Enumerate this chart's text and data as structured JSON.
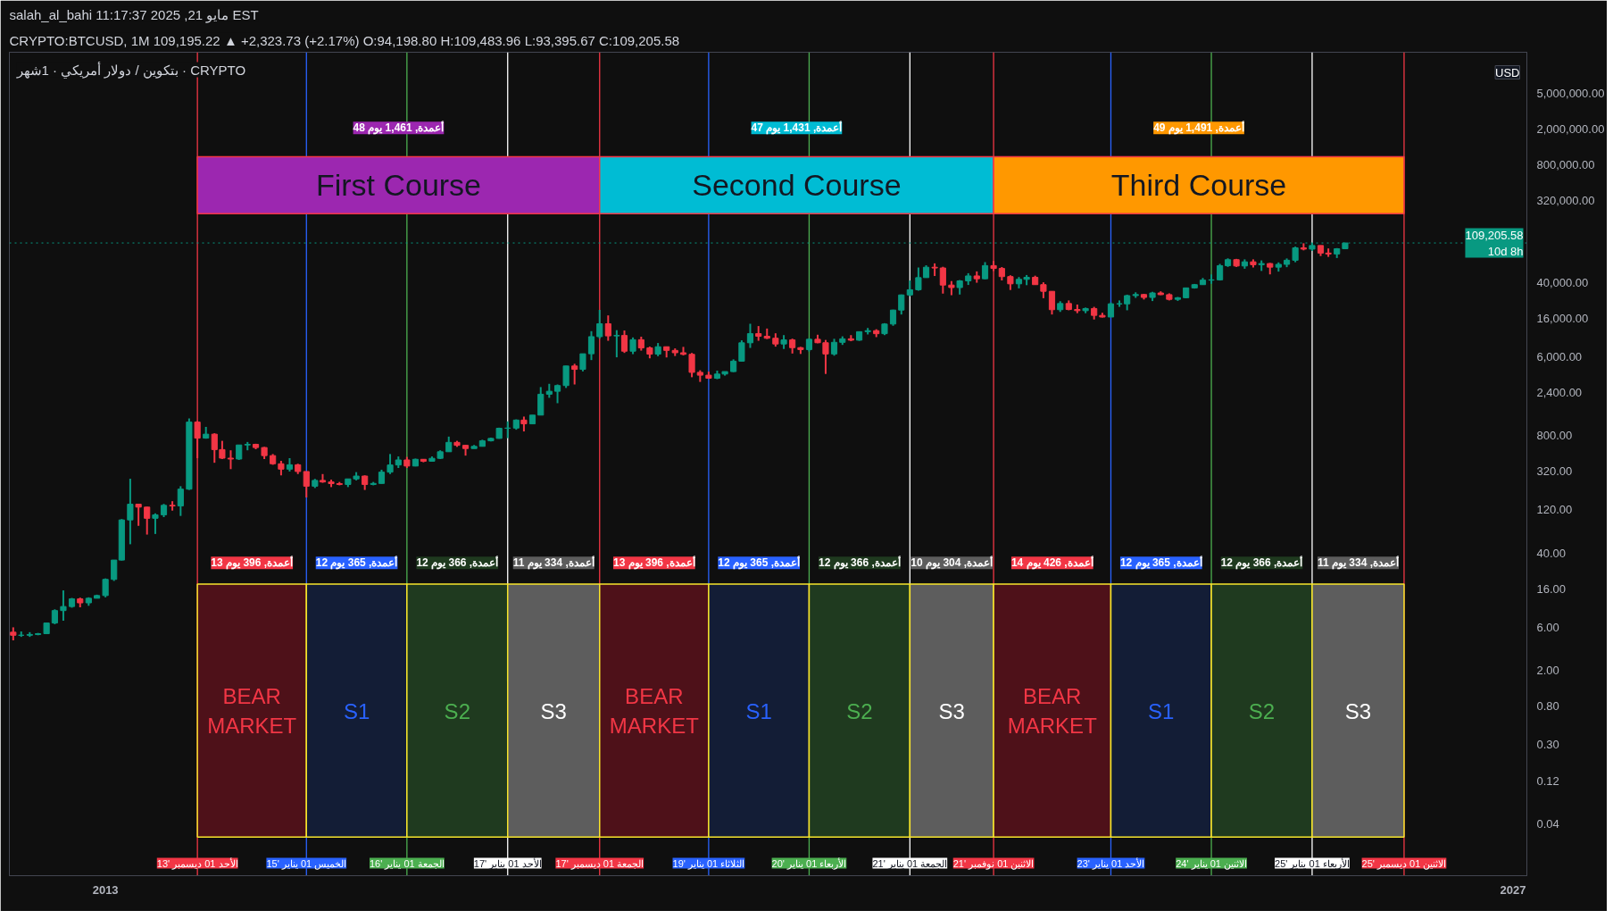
{
  "chart_data": {
    "type": "candlestick",
    "title": "salah_al_bahi مايو 21, 2025 11:17:37 EST",
    "subtitle": "CRYPTO:BTCUSD, 1M 109,195.22 ▲ +2,323.73 (+2.17%) O:94,198.80 H:109,483.96 L:93,395.67 C:109,205.58",
    "log": true,
    "xlim": [
      "2012-01-18",
      "2027-02-20"
    ],
    "xticks": [
      {
        "value": "2013-01-01",
        "label": "2013"
      },
      {
        "value": "2027-01-01",
        "label": "2027"
      }
    ],
    "ylim": [
      0.0106,
      14200000
    ],
    "yticks": [
      {
        "value": 0.04,
        "label": "0.04"
      },
      {
        "value": 0.12,
        "label": "0.12"
      },
      {
        "value": 0.3,
        "label": "0.30"
      },
      {
        "value": 0.8,
        "label": "0.80"
      },
      {
        "value": 2,
        "label": "2.00"
      },
      {
        "value": 6,
        "label": "6.00"
      },
      {
        "value": 16,
        "label": "16.00"
      },
      {
        "value": 40,
        "label": "40.00"
      },
      {
        "value": 120,
        "label": "120.00"
      },
      {
        "value": 320,
        "label": "320.00"
      },
      {
        "value": 800,
        "label": "800.00"
      },
      {
        "value": 2400,
        "label": "2,400.00"
      },
      {
        "value": 6000,
        "label": "6,000.00"
      },
      {
        "value": 16000,
        "label": "16,000.00"
      },
      {
        "value": 40000,
        "label": "40,000.00"
      },
      {
        "value": 320000,
        "label": "320,000.00"
      },
      {
        "value": 800000,
        "label": "800,000.00"
      },
      {
        "value": 2000000,
        "label": "2,000,000.00"
      },
      {
        "value": 5000000,
        "label": "5,000,000.00"
      }
    ],
    "x": [
      "2012-02",
      "2012-03",
      "2012-04",
      "2012-05",
      "2012-06",
      "2012-07",
      "2012-08",
      "2012-09",
      "2012-10",
      "2012-11",
      "2012-12",
      "2013-01",
      "2013-02",
      "2013-03",
      "2013-04",
      "2013-05",
      "2013-06",
      "2013-07",
      "2013-08",
      "2013-09",
      "2013-10",
      "2013-11",
      "2013-12",
      "2014-01",
      "2014-02",
      "2014-03",
      "2014-04",
      "2014-05",
      "2014-06",
      "2014-07",
      "2014-08",
      "2014-09",
      "2014-10",
      "2014-11",
      "2014-12",
      "2015-01",
      "2015-02",
      "2015-03",
      "2015-04",
      "2015-05",
      "2015-06",
      "2015-07",
      "2015-08",
      "2015-09",
      "2015-10",
      "2015-11",
      "2015-12",
      "2016-01",
      "2016-02",
      "2016-03",
      "2016-04",
      "2016-05",
      "2016-06",
      "2016-07",
      "2016-08",
      "2016-09",
      "2016-10",
      "2016-11",
      "2016-12",
      "2017-01",
      "2017-02",
      "2017-03",
      "2017-04",
      "2017-05",
      "2017-06",
      "2017-07",
      "2017-08",
      "2017-09",
      "2017-10",
      "2017-11",
      "2017-12",
      "2018-01",
      "2018-02",
      "2018-03",
      "2018-04",
      "2018-05",
      "2018-06",
      "2018-07",
      "2018-08",
      "2018-09",
      "2018-10",
      "2018-11",
      "2018-12",
      "2019-01",
      "2019-02",
      "2019-03",
      "2019-04",
      "2019-05",
      "2019-06",
      "2019-07",
      "2019-08",
      "2019-09",
      "2019-10",
      "2019-11",
      "2019-12",
      "2020-01",
      "2020-02",
      "2020-03",
      "2020-04",
      "2020-05",
      "2020-06",
      "2020-07",
      "2020-08",
      "2020-09",
      "2020-10",
      "2020-11",
      "2020-12",
      "2021-01",
      "2021-02",
      "2021-03",
      "2021-04",
      "2021-05",
      "2021-06",
      "2021-07",
      "2021-08",
      "2021-09",
      "2021-10",
      "2021-11",
      "2021-12",
      "2022-01",
      "2022-02",
      "2022-03",
      "2022-04",
      "2022-05",
      "2022-06",
      "2022-07",
      "2022-08",
      "2022-09",
      "2022-10",
      "2022-11",
      "2022-12",
      "2023-01",
      "2023-02",
      "2023-03",
      "2023-04",
      "2023-05",
      "2023-06",
      "2023-07",
      "2023-08",
      "2023-09",
      "2023-10",
      "2023-11",
      "2023-12",
      "2024-01",
      "2024-02",
      "2024-03",
      "2024-04",
      "2024-05",
      "2024-06",
      "2024-07",
      "2024-08",
      "2024-09",
      "2024-10",
      "2024-11",
      "2024-12",
      "2025-01",
      "2025-02",
      "2025-03",
      "2025-04",
      "2025-05"
    ],
    "ohlc": [
      [
        5.3,
        6.0,
        4.3,
        4.9
      ],
      [
        4.9,
        5.4,
        4.7,
        4.9
      ],
      [
        4.9,
        5.3,
        4.7,
        5.0
      ],
      [
        5.0,
        5.2,
        4.9,
        5.1
      ],
      [
        5.1,
        6.7,
        5.1,
        6.7
      ],
      [
        6.7,
        9.5,
        6.5,
        9.2
      ],
      [
        9.2,
        15.4,
        7.1,
        10.2
      ],
      [
        10.2,
        12.7,
        9.9,
        12.4
      ],
      [
        12.4,
        12.8,
        10.0,
        11.2
      ],
      [
        11.2,
        12.9,
        10.4,
        12.6
      ],
      [
        12.6,
        13.8,
        12.6,
        13.5
      ],
      [
        13.5,
        20.9,
        12.9,
        20.4
      ],
      [
        20.4,
        33.5,
        19.6,
        33.4
      ],
      [
        33.4,
        95,
        33,
        93
      ],
      [
        93,
        266,
        50,
        139
      ],
      [
        139,
        140,
        80,
        129
      ],
      [
        129,
        130,
        64,
        97
      ],
      [
        97,
        110,
        65,
        106
      ],
      [
        106,
        140,
        100,
        135
      ],
      [
        135,
        150,
        118,
        133
      ],
      [
        133,
        220,
        103,
        204
      ],
      [
        204,
        1240,
        200,
        1130
      ],
      [
        1130,
        1160,
        450,
        750
      ],
      [
        750,
        1000,
        740,
        830
      ],
      [
        830,
        850,
        400,
        560
      ],
      [
        560,
        700,
        440,
        450
      ],
      [
        450,
        550,
        340,
        440
      ],
      [
        440,
        630,
        430,
        630
      ],
      [
        630,
        680,
        550,
        640
      ],
      [
        640,
        650,
        565,
        590
      ],
      [
        590,
        600,
        440,
        480
      ],
      [
        480,
        500,
        380,
        390
      ],
      [
        390,
        420,
        290,
        340
      ],
      [
        340,
        450,
        320,
        380
      ],
      [
        380,
        390,
        300,
        320
      ],
      [
        320,
        320,
        165,
        220
      ],
      [
        220,
        265,
        210,
        255
      ],
      [
        255,
        300,
        240,
        245
      ],
      [
        245,
        260,
        215,
        235
      ],
      [
        235,
        245,
        225,
        230
      ],
      [
        230,
        265,
        215,
        265
      ],
      [
        265,
        315,
        255,
        285
      ],
      [
        285,
        290,
        200,
        230
      ],
      [
        230,
        245,
        225,
        236
      ],
      [
        236,
        335,
        235,
        315
      ],
      [
        315,
        500,
        300,
        378
      ],
      [
        378,
        470,
        350,
        430
      ],
      [
        430,
        465,
        350,
        368
      ],
      [
        368,
        445,
        365,
        437
      ],
      [
        437,
        440,
        405,
        416
      ],
      [
        416,
        470,
        412,
        448
      ],
      [
        448,
        550,
        440,
        530
      ],
      [
        530,
        780,
        530,
        673
      ],
      [
        673,
        700,
        600,
        624
      ],
      [
        624,
        630,
        480,
        575
      ],
      [
        575,
        630,
        575,
        608
      ],
      [
        608,
        720,
        605,
        700
      ],
      [
        700,
        760,
        690,
        745
      ],
      [
        745,
        980,
        740,
        965
      ],
      [
        965,
        1150,
        750,
        970
      ],
      [
        970,
        1210,
        930,
        1190
      ],
      [
        1190,
        1300,
        890,
        1080
      ],
      [
        1080,
        1350,
        1070,
        1350
      ],
      [
        1350,
        2760,
        1350,
        2300
      ],
      [
        2300,
        3000,
        2100,
        2480
      ],
      [
        2480,
        2950,
        1830,
        2870
      ],
      [
        2870,
        4750,
        2700,
        4730
      ],
      [
        4730,
        5000,
        2950,
        4340
      ],
      [
        4340,
        6470,
        4120,
        6460
      ],
      [
        6460,
        11500,
        5500,
        10000
      ],
      [
        10000,
        19800,
        9500,
        13900
      ],
      [
        13900,
        17200,
        9000,
        10200
      ],
      [
        10200,
        11800,
        5900,
        10300
      ],
      [
        10300,
        11700,
        6600,
        6900
      ],
      [
        6900,
        9800,
        6400,
        9250
      ],
      [
        9250,
        9990,
        7000,
        7500
      ],
      [
        7500,
        7760,
        5750,
        6400
      ],
      [
        6400,
        8500,
        6070,
        7730
      ],
      [
        7730,
        7760,
        5880,
        7040
      ],
      [
        7040,
        7410,
        6100,
        6630
      ],
      [
        6630,
        7700,
        6200,
        6370
      ],
      [
        6370,
        6600,
        3550,
        4020
      ],
      [
        4020,
        4240,
        3150,
        3740
      ],
      [
        3740,
        4100,
        3400,
        3460
      ],
      [
        3460,
        4200,
        3380,
        3850
      ],
      [
        3850,
        4100,
        3700,
        4100
      ],
      [
        4100,
        5600,
        4050,
        5350
      ],
      [
        5350,
        9100,
        5320,
        8550
      ],
      [
        8550,
        13900,
        7500,
        10800
      ],
      [
        10800,
        13100,
        9000,
        10100
      ],
      [
        10100,
        12300,
        9400,
        9600
      ],
      [
        9600,
        10900,
        7750,
        8290
      ],
      [
        8290,
        10400,
        7300,
        9200
      ],
      [
        9200,
        9500,
        6500,
        7550
      ],
      [
        7550,
        7700,
        6430,
        7190
      ],
      [
        7190,
        9580,
        6850,
        9350
      ],
      [
        9350,
        10500,
        8450,
        8560
      ],
      [
        8560,
        9190,
        3860,
        6430
      ],
      [
        6430,
        9460,
        6150,
        8650
      ],
      [
        8650,
        10080,
        8100,
        9460
      ],
      [
        9460,
        10400,
        8900,
        9140
      ],
      [
        9140,
        11450,
        8980,
        11350
      ],
      [
        11350,
        12480,
        10580,
        11650
      ],
      [
        11650,
        12080,
        9880,
        10780
      ],
      [
        10780,
        14100,
        10400,
        13800
      ],
      [
        13800,
        19900,
        13200,
        19700
      ],
      [
        19700,
        29300,
        17600,
        29000
      ],
      [
        29000,
        41900,
        28100,
        33100
      ],
      [
        33100,
        58400,
        32300,
        45100
      ],
      [
        45100,
        61800,
        45000,
        58800
      ],
      [
        58800,
        64900,
        47000,
        57700
      ],
      [
        57700,
        59500,
        30000,
        37300
      ],
      [
        37300,
        41300,
        28800,
        35000
      ],
      [
        35000,
        42400,
        29300,
        41500
      ],
      [
        41500,
        50500,
        37400,
        47100
      ],
      [
        47100,
        52900,
        39600,
        43800
      ],
      [
        43800,
        67000,
        43300,
        61300
      ],
      [
        61300,
        69000,
        53300,
        57000
      ],
      [
        57000,
        59100,
        42000,
        46300
      ],
      [
        46300,
        47900,
        32900,
        38500
      ],
      [
        38500,
        45800,
        34300,
        43200
      ],
      [
        43200,
        48200,
        37200,
        45500
      ],
      [
        45500,
        47400,
        37700,
        37700
      ],
      [
        37700,
        40000,
        26700,
        31800
      ],
      [
        31800,
        31900,
        17600,
        19900
      ],
      [
        19900,
        24700,
        18800,
        23300
      ],
      [
        23300,
        25200,
        19600,
        20000
      ],
      [
        20000,
        22700,
        18200,
        19400
      ],
      [
        19400,
        21000,
        18200,
        20500
      ],
      [
        20500,
        21400,
        15500,
        17200
      ],
      [
        17200,
        18400,
        16300,
        16500
      ],
      [
        16500,
        23900,
        16500,
        23100
      ],
      [
        23100,
        25200,
        21400,
        23100
      ],
      [
        23100,
        29200,
        19600,
        28500
      ],
      [
        28500,
        31000,
        26900,
        29300
      ],
      [
        29300,
        29800,
        25800,
        27200
      ],
      [
        27200,
        31400,
        24800,
        30500
      ],
      [
        30500,
        31800,
        28900,
        29200
      ],
      [
        29200,
        30200,
        25200,
        25900
      ],
      [
        25900,
        27500,
        24900,
        27000
      ],
      [
        27000,
        35000,
        26600,
        34700
      ],
      [
        34700,
        38400,
        34100,
        37700
      ],
      [
        37700,
        44700,
        37600,
        42300
      ],
      [
        42300,
        48900,
        38500,
        42600
      ],
      [
        42600,
        64000,
        41900,
        61200
      ],
      [
        61200,
        73800,
        59300,
        71300
      ],
      [
        71300,
        72800,
        59200,
        60700
      ],
      [
        60700,
        71900,
        56600,
        67500
      ],
      [
        67500,
        71900,
        58400,
        62700
      ],
      [
        62700,
        70000,
        53500,
        64600
      ],
      [
        64600,
        65600,
        49000,
        58900
      ],
      [
        58900,
        66500,
        52600,
        63300
      ],
      [
        63300,
        73600,
        58900,
        70300
      ],
      [
        70300,
        99600,
        66800,
        96400
      ],
      [
        96400,
        108400,
        90500,
        93400
      ],
      [
        93400,
        109600,
        89200,
        102400
      ],
      [
        102400,
        102500,
        78200,
        84400
      ],
      [
        84400,
        95000,
        76600,
        82500
      ],
      [
        82500,
        95800,
        74400,
        94200
      ],
      [
        94198.8,
        109483.96,
        93395.67,
        109205.58
      ]
    ],
    "ref_lines": [
      {
        "axis": "x",
        "value": "2013-12-01",
        "label": "الأحد 01 ديسمبر '13",
        "color": "#f23645"
      },
      {
        "axis": "x",
        "value": "2015-01-01",
        "label": "الخميس 01 يناير '15",
        "color": "#2962ff"
      },
      {
        "axis": "x",
        "value": "2016-01-01",
        "label": "الجمعة 01 يناير '16",
        "color": "#4caf50"
      },
      {
        "axis": "x",
        "value": "2017-01-01",
        "label": "الأحد 01 يناير '17",
        "color": "#ffffff"
      },
      {
        "axis": "x",
        "value": "2017-12-01",
        "label": "الجمعة 01 ديسمبر '17",
        "color": "#f23645"
      },
      {
        "axis": "x",
        "value": "2019-01-01",
        "label": "الثلاثاء 01 يناير '19",
        "color": "#2962ff"
      },
      {
        "axis": "x",
        "value": "2020-01-01",
        "label": "الأربعاء 01 يناير '20",
        "color": "#4caf50"
      },
      {
        "axis": "x",
        "value": "2021-01-01",
        "label": "الجمعة 01 يناير '21",
        "color": "#ffffff"
      },
      {
        "axis": "x",
        "value": "2021-11-01",
        "label": "الاثنين 01 نوفمبر '21",
        "color": "#f23645"
      },
      {
        "axis": "x",
        "value": "2023-01-01",
        "label": "الأحد 01 يناير '23",
        "color": "#2962ff"
      },
      {
        "axis": "x",
        "value": "2024-01-01",
        "label": "الاثنين 01 يناير '24",
        "color": "#4caf50"
      },
      {
        "axis": "x",
        "value": "2025-01-01",
        "label": "الأربعاء 01 يناير '25",
        "color": "#ffffff"
      },
      {
        "axis": "x",
        "value": "2025-12-01",
        "label": "الاثنين 01 ديسمبر '25",
        "color": "#f23645"
      },
      {
        "axis": "y",
        "value": 109205.58,
        "label": "109,205.58\n10d 8h",
        "color": "#089981",
        "line_style": "dotted"
      }
    ],
    "bands": [
      {
        "axis": "x",
        "from": "2013-12-01",
        "to": "2017-12-01",
        "label": "First Course",
        "color": "#9c27b0"
      },
      {
        "axis": "x",
        "from": "2017-12-01",
        "to": "2021-11-01",
        "label": "Second Course",
        "color": "#00bcd4"
      },
      {
        "axis": "x",
        "from": "2021-11-01",
        "to": "2025-12-01",
        "label": "Third Course",
        "color": "#ff9800"
      },
      {
        "axis": "x",
        "from": "2013-12-01",
        "to": "2015-01-01",
        "label": "BEAR MARKET",
        "color": "#4e1119"
      },
      {
        "axis": "x",
        "from": "2015-01-01",
        "to": "2016-01-01",
        "label": "S1",
        "color": "#131d36"
      },
      {
        "axis": "x",
        "from": "2016-01-01",
        "to": "2017-01-01",
        "label": "S2",
        "color": "#1f3a1f"
      },
      {
        "axis": "x",
        "from": "2017-01-01",
        "to": "2017-12-01",
        "label": "S3",
        "color": "#5d5d5d"
      },
      {
        "axis": "x",
        "from": "2017-12-01",
        "to": "2019-01-01",
        "label": "BEAR MARKET",
        "color": "#4e1119"
      },
      {
        "axis": "x",
        "from": "2019-01-01",
        "to": "2020-01-01",
        "label": "S1",
        "color": "#131d36"
      },
      {
        "axis": "x",
        "from": "2020-01-01",
        "to": "2021-01-01",
        "label": "S2",
        "color": "#1f3a1f"
      },
      {
        "axis": "x",
        "from": "2021-01-01",
        "to": "2021-11-01",
        "label": "S3",
        "color": "#5d5d5d"
      },
      {
        "axis": "x",
        "from": "2021-11-01",
        "to": "2023-01-01",
        "label": "BEAR MARKET",
        "color": "#4e1119"
      },
      {
        "axis": "x",
        "from": "2023-01-01",
        "to": "2024-01-01",
        "label": "S1",
        "color": "#131d36"
      },
      {
        "axis": "x",
        "from": "2024-01-01",
        "to": "2025-01-01",
        "label": "S2",
        "color": "#1f3a1f"
      },
      {
        "axis": "x",
        "from": "2025-01-01",
        "to": "2025-12-01",
        "label": "S3",
        "color": "#5d5d5d"
      }
    ],
    "annotations": [
      "بتكوين / دولار أمريكي · 1شهر · CRYPTO",
      "USD",
      "48 أعمدة, 1,461 يوم",
      "47 أعمدة, 1,431 يوم",
      "49 أعمدة, 1,491 يوم",
      "13 أعمدة, 396 يوم",
      "12 أعمدة, 365 يوم",
      "12 أعمدة, 366 يوم",
      "11 أعمدة, 334 يوم",
      "13 أعمدة, 396 يوم",
      "12 أعمدة, 365 يوم",
      "12 أعمدة, 366 يوم",
      "10 أعمدة, 304 يوم",
      "14 أعمدة, 426 يوم",
      "12 أعمدة, 365 يوم",
      "12 أعمدة, 366 يوم",
      "11 أعمدة, 334 يوم"
    ]
  }
}
